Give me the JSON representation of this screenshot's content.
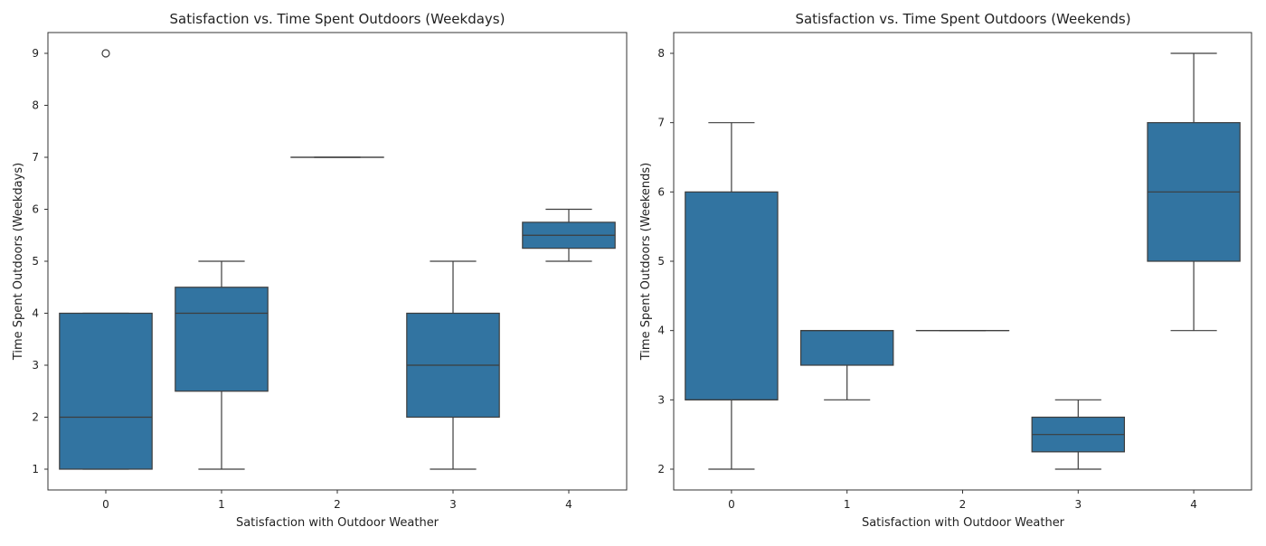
{
  "chart_data": [
    {
      "type": "box",
      "title": "Satisfaction vs. Time Spent Outdoors (Weekdays)",
      "xlabel": "Satisfaction with Outdoor Weather",
      "ylabel": "Time Spent Outdoors (Weekdays)",
      "categories": [
        "0",
        "1",
        "2",
        "3",
        "4"
      ],
      "ylim": [
        0.6,
        9.4
      ],
      "yticks": [
        1,
        2,
        3,
        4,
        5,
        6,
        7,
        8,
        9
      ],
      "grid": false,
      "color": "#3274a1",
      "boxes": [
        {
          "category": "0",
          "whisker_low": 1,
          "q1": 1,
          "median": 2,
          "q3": 4,
          "whisker_high": 4,
          "outliers": [
            9
          ]
        },
        {
          "category": "1",
          "whisker_low": 1,
          "q1": 2.5,
          "median": 4,
          "q3": 4.5,
          "whisker_high": 5,
          "outliers": []
        },
        {
          "category": "2",
          "whisker_low": 7,
          "q1": 7,
          "median": 7,
          "q3": 7,
          "whisker_high": 7,
          "outliers": []
        },
        {
          "category": "3",
          "whisker_low": 1,
          "q1": 2,
          "median": 3,
          "q3": 4,
          "whisker_high": 5,
          "outliers": []
        },
        {
          "category": "4",
          "whisker_low": 5,
          "q1": 5.25,
          "median": 5.5,
          "q3": 5.75,
          "whisker_high": 6,
          "outliers": []
        }
      ]
    },
    {
      "type": "box",
      "title": "Satisfaction vs. Time Spent Outdoors (Weekends)",
      "xlabel": "Satisfaction with Outdoor Weather",
      "ylabel": "Time Spent Outdoors (Weekends)",
      "categories": [
        "0",
        "1",
        "2",
        "3",
        "4"
      ],
      "ylim": [
        1.7,
        8.3
      ],
      "yticks": [
        2,
        3,
        4,
        5,
        6,
        7,
        8
      ],
      "grid": false,
      "color": "#3274a1",
      "boxes": [
        {
          "category": "0",
          "whisker_low": 2,
          "q1": 3,
          "median": 3,
          "q3": 6,
          "whisker_high": 7,
          "outliers": []
        },
        {
          "category": "1",
          "whisker_low": 3,
          "q1": 3.5,
          "median": 4,
          "q3": 4,
          "whisker_high": 4,
          "outliers": []
        },
        {
          "category": "2",
          "whisker_low": 4,
          "q1": 4,
          "median": 4,
          "q3": 4,
          "whisker_high": 4,
          "outliers": []
        },
        {
          "category": "3",
          "whisker_low": 2,
          "q1": 2.25,
          "median": 2.5,
          "q3": 2.75,
          "whisker_high": 3,
          "outliers": []
        },
        {
          "category": "4",
          "whisker_low": 4,
          "q1": 5,
          "median": 6,
          "q3": 7,
          "whisker_high": 8,
          "outliers": []
        }
      ]
    }
  ]
}
